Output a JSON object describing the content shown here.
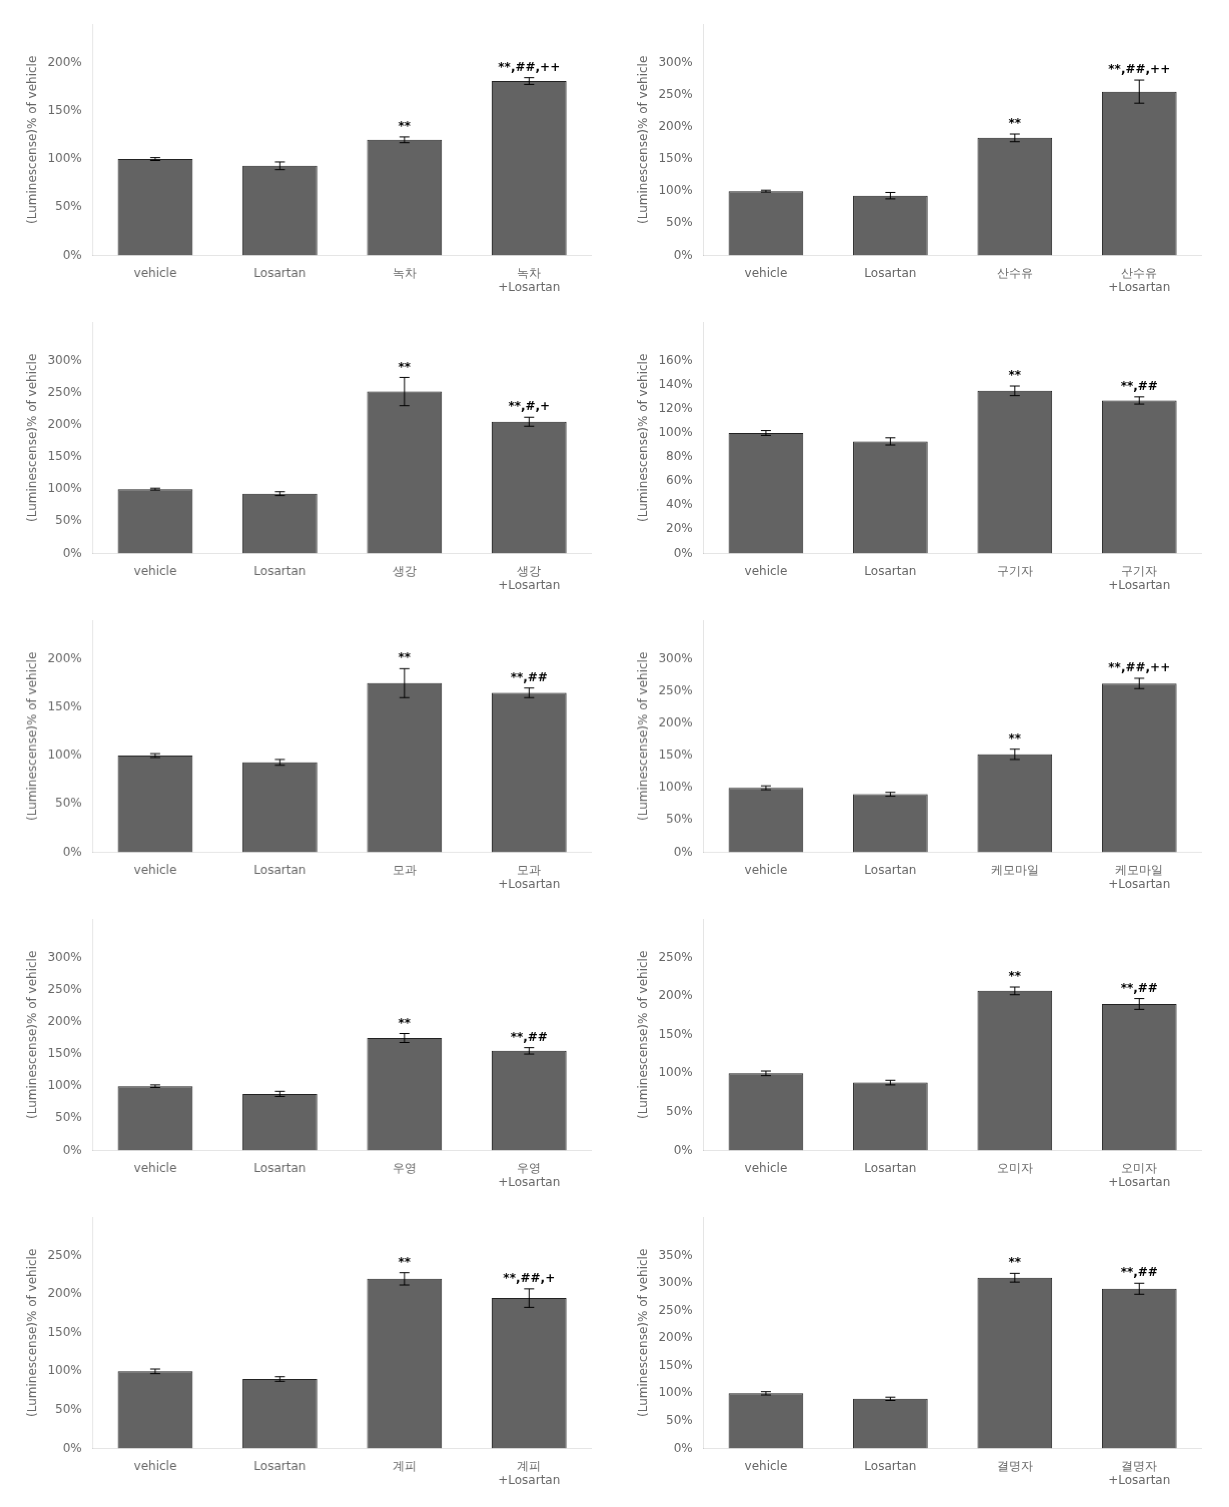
{
  "chart_data": [
    {
      "type": "bar",
      "categories": [
        "vehicle",
        "Losartan",
        "녹차",
        "녹차\n+Losartan"
      ],
      "values": [
        100,
        93,
        120,
        181
      ],
      "errors": [
        1.5,
        4,
        3,
        3.5
      ],
      "color": "#636363",
      "ylim": [
        0,
        240
      ],
      "yticks": [
        {
          "value": 0,
          "label": "0%"
        },
        {
          "value": 50,
          "label": "50%"
        },
        {
          "value": 100,
          "label": "100%"
        },
        {
          "value": 150,
          "label": "150%"
        },
        {
          "value": 200,
          "label": "200%"
        }
      ],
      "ylabel": "(Luminescense)% of vehicle",
      "annotations": [
        null,
        null,
        "**",
        "**,##,++"
      ],
      "grid": false
    },
    {
      "type": "bar",
      "categories": [
        "vehicle",
        "Losartan",
        "산수유",
        "산수유\n+Losartan"
      ],
      "values": [
        100,
        93,
        183,
        255
      ],
      "errors": [
        1.5,
        5,
        6,
        18
      ],
      "color": "#636363",
      "ylim": [
        0,
        360
      ],
      "yticks": [
        {
          "value": 0,
          "label": "0%"
        },
        {
          "value": 50,
          "label": "50%"
        },
        {
          "value": 100,
          "label": "100%"
        },
        {
          "value": 150,
          "label": "150%"
        },
        {
          "value": 200,
          "label": "200%"
        },
        {
          "value": 250,
          "label": "250%"
        },
        {
          "value": 300,
          "label": "300%"
        }
      ],
      "ylabel": "(Luminescense)% of vehicle",
      "annotations": [
        null,
        null,
        "**",
        "**,##,++"
      ],
      "grid": false
    },
    {
      "type": "bar",
      "categories": [
        "vehicle",
        "Losartan",
        "생강",
        "생강\n+Losartan"
      ],
      "values": [
        100,
        93,
        252,
        205
      ],
      "errors": [
        1.5,
        3,
        22,
        7
      ],
      "color": "#636363",
      "ylim": [
        0,
        360
      ],
      "yticks": [
        {
          "value": 0,
          "label": "0%"
        },
        {
          "value": 50,
          "label": "50%"
        },
        {
          "value": 100,
          "label": "100%"
        },
        {
          "value": 150,
          "label": "150%"
        },
        {
          "value": 200,
          "label": "200%"
        },
        {
          "value": 250,
          "label": "250%"
        },
        {
          "value": 300,
          "label": "300%"
        }
      ],
      "ylabel": "(Luminescense)% of vehicle",
      "annotations": [
        null,
        null,
        "**",
        "**,#,+"
      ],
      "grid": false
    },
    {
      "type": "bar",
      "categories": [
        "vehicle",
        "Losartan",
        "구기자",
        "구기자\n+Losartan"
      ],
      "values": [
        100,
        93,
        135,
        127
      ],
      "errors": [
        2,
        3,
        4,
        3
      ],
      "color": "#636363",
      "ylim": [
        0,
        192
      ],
      "yticks": [
        {
          "value": 0,
          "label": "0%"
        },
        {
          "value": 20,
          "label": "20%"
        },
        {
          "value": 40,
          "label": "40%"
        },
        {
          "value": 60,
          "label": "60%"
        },
        {
          "value": 80,
          "label": "80%"
        },
        {
          "value": 100,
          "label": "100%"
        },
        {
          "value": 120,
          "label": "120%"
        },
        {
          "value": 140,
          "label": "140%"
        },
        {
          "value": 160,
          "label": "160%"
        }
      ],
      "ylabel": "(Luminescense)% of vehicle",
      "annotations": [
        null,
        null,
        "**",
        "**,##"
      ],
      "grid": false
    },
    {
      "type": "bar",
      "categories": [
        "vehicle",
        "Losartan",
        "모과",
        "모과\n+Losartan"
      ],
      "values": [
        100,
        93,
        175,
        165
      ],
      "errors": [
        2,
        3,
        15,
        5
      ],
      "color": "#636363",
      "ylim": [
        0,
        240
      ],
      "yticks": [
        {
          "value": 0,
          "label": "0%"
        },
        {
          "value": 50,
          "label": "50%"
        },
        {
          "value": 100,
          "label": "100%"
        },
        {
          "value": 150,
          "label": "150%"
        },
        {
          "value": 200,
          "label": "200%"
        }
      ],
      "ylabel": "(Luminescense)% of vehicle",
      "annotations": [
        null,
        null,
        "**",
        "**,##"
      ],
      "grid": false
    },
    {
      "type": "bar",
      "categories": [
        "vehicle",
        "Losartan",
        "케모마일",
        "케모마일\n+Losartan"
      ],
      "values": [
        100,
        90,
        152,
        262
      ],
      "errors": [
        3,
        3,
        8,
        8
      ],
      "color": "#636363",
      "ylim": [
        0,
        360
      ],
      "yticks": [
        {
          "value": 0,
          "label": "0%"
        },
        {
          "value": 50,
          "label": "50%"
        },
        {
          "value": 100,
          "label": "100%"
        },
        {
          "value": 150,
          "label": "150%"
        },
        {
          "value": 200,
          "label": "200%"
        },
        {
          "value": 250,
          "label": "250%"
        },
        {
          "value": 300,
          "label": "300%"
        }
      ],
      "ylabel": "(Luminescense)% of vehicle",
      "annotations": [
        null,
        null,
        "**",
        "**,##,++"
      ],
      "grid": false
    },
    {
      "type": "bar",
      "categories": [
        "vehicle",
        "Losartan",
        "우영",
        "우영\n+Losartan"
      ],
      "values": [
        100,
        88,
        175,
        155
      ],
      "errors": [
        2,
        4,
        7,
        5
      ],
      "color": "#636363",
      "ylim": [
        0,
        360
      ],
      "yticks": [
        {
          "value": 0,
          "label": "0%"
        },
        {
          "value": 50,
          "label": "50%"
        },
        {
          "value": 100,
          "label": "100%"
        },
        {
          "value": 150,
          "label": "150%"
        },
        {
          "value": 200,
          "label": "200%"
        },
        {
          "value": 250,
          "label": "250%"
        },
        {
          "value": 300,
          "label": "300%"
        }
      ],
      "ylabel": "(Luminescense)% of vehicle",
      "annotations": [
        null,
        null,
        "**",
        "**,##"
      ],
      "grid": false
    },
    {
      "type": "bar",
      "categories": [
        "vehicle",
        "Losartan",
        "오미자",
        "오미자\n+Losartan"
      ],
      "values": [
        100,
        88,
        207,
        190
      ],
      "errors": [
        3,
        3,
        5,
        7
      ],
      "color": "#636363",
      "ylim": [
        0,
        300
      ],
      "yticks": [
        {
          "value": 0,
          "label": "0%"
        },
        {
          "value": 50,
          "label": "50%"
        },
        {
          "value": 100,
          "label": "100%"
        },
        {
          "value": 150,
          "label": "150%"
        },
        {
          "value": 200,
          "label": "200%"
        },
        {
          "value": 250,
          "label": "250%"
        }
      ],
      "ylabel": "(Luminescense)% of vehicle",
      "annotations": [
        null,
        null,
        "**",
        "**,##"
      ],
      "grid": false
    },
    {
      "type": "bar",
      "categories": [
        "vehicle",
        "Losartan",
        "계피",
        "계피\n+Losartan"
      ],
      "values": [
        100,
        90,
        220,
        195
      ],
      "errors": [
        3,
        3,
        8,
        12
      ],
      "color": "#636363",
      "ylim": [
        0,
        300
      ],
      "yticks": [
        {
          "value": 0,
          "label": "0%"
        },
        {
          "value": 50,
          "label": "50%"
        },
        {
          "value": 100,
          "label": "100%"
        },
        {
          "value": 150,
          "label": "150%"
        },
        {
          "value": 200,
          "label": "200%"
        },
        {
          "value": 250,
          "label": "250%"
        }
      ],
      "ylabel": "(Luminescense)% of vehicle",
      "annotations": [
        null,
        null,
        "**",
        "**,##,+"
      ],
      "grid": false
    },
    {
      "type": "bar",
      "categories": [
        "vehicle",
        "Losartan",
        "결명자",
        "결명자\n+Losartan"
      ],
      "values": [
        100,
        90,
        310,
        290
      ],
      "errors": [
        3,
        3,
        8,
        10
      ],
      "color": "#636363",
      "ylim": [
        0,
        420
      ],
      "yticks": [
        {
          "value": 0,
          "label": "0%"
        },
        {
          "value": 50,
          "label": "50%"
        },
        {
          "value": 100,
          "label": "100%"
        },
        {
          "value": 150,
          "label": "150%"
        },
        {
          "value": 200,
          "label": "200%"
        },
        {
          "value": 250,
          "label": "250%"
        },
        {
          "value": 300,
          "label": "300%"
        },
        {
          "value": 350,
          "label": "350%"
        }
      ],
      "ylabel": "(Luminescense)% of vehicle",
      "annotations": [
        null,
        null,
        "**",
        "**,##"
      ],
      "grid": false
    }
  ]
}
